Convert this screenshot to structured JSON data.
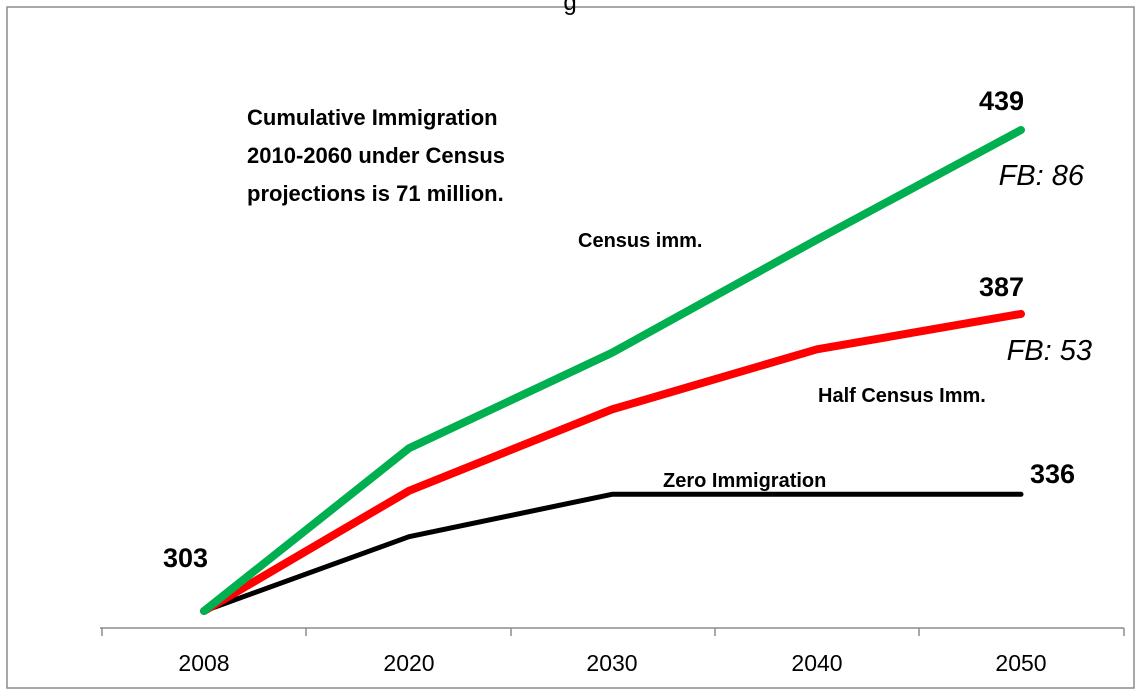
{
  "chart_data": {
    "type": "line",
    "title": "...g...",
    "xlabel": "",
    "ylabel": "",
    "x": [
      2008,
      2020,
      2030,
      2040,
      2050
    ],
    "tick_labels": [
      "2008",
      "2020",
      "2030",
      "2040",
      "2050"
    ],
    "ylim": [
      300,
      445
    ],
    "grid": false,
    "series": [
      {
        "name": "Census imm.",
        "color": "#00b050",
        "values": [
          303,
          349,
          376,
          408,
          439
        ],
        "end_label": "439",
        "fb_label": "FB: 86"
      },
      {
        "name": "Half Census Imm.",
        "color": "#ff0000",
        "values": [
          303,
          337,
          360,
          377,
          387
        ],
        "end_label": "387",
        "fb_label": "FB: 53"
      },
      {
        "name": "Zero Immigration",
        "color": "#000000",
        "values": [
          303,
          324,
          336,
          336,
          336
        ],
        "end_label": "336"
      }
    ],
    "start_label": "303",
    "annotation": [
      "Cumulative Immigration",
      "2010-2060 under Census",
      "projections is 71 million."
    ]
  }
}
